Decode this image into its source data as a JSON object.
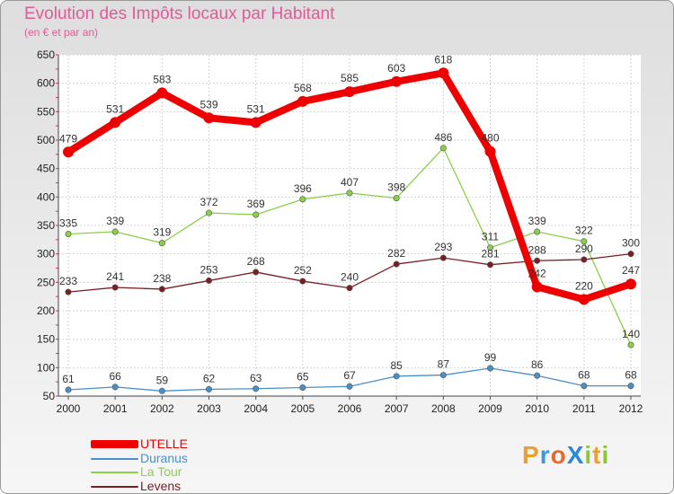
{
  "header": {
    "title": "Evolution des Impôts locaux par Habitant",
    "subtitle": "(en € et par an)"
  },
  "brand": {
    "text": "ProXiti",
    "letters": [
      "P",
      "r",
      "o",
      "X",
      "i",
      "t",
      "i"
    ],
    "colors": [
      "#e8a030",
      "#3a9ad8",
      "#e86a2a",
      "#2a8ad8",
      "#8cc63a",
      "#e8a030",
      "#8cc63a"
    ]
  },
  "chart_data": {
    "type": "line",
    "title": "Evolution des Impôts locaux par Habitant",
    "subtitle": "(en € et par an)",
    "x": [
      "2000",
      "2001",
      "2002",
      "2003",
      "2004",
      "2005",
      "2006",
      "2007",
      "2008",
      "2009",
      "2010",
      "2011",
      "2012"
    ],
    "ylim": [
      50,
      650
    ],
    "yticks": [
      50,
      100,
      150,
      200,
      250,
      300,
      350,
      400,
      450,
      500,
      550,
      600,
      650
    ],
    "grid": true,
    "legend_position": "bottom-left",
    "series": [
      {
        "name": "UTELLE",
        "color": "#ee0000",
        "values": [
          479,
          531,
          583,
          539,
          531,
          568,
          585,
          603,
          618,
          480,
          242,
          220,
          247
        ]
      },
      {
        "name": "Duranus",
        "color": "#4a90c8",
        "values": [
          61,
          66,
          59,
          62,
          63,
          65,
          67,
          85,
          87,
          99,
          86,
          68,
          68
        ]
      },
      {
        "name": "La Tour",
        "color": "#88d048",
        "values": [
          335,
          339,
          319,
          372,
          369,
          396,
          407,
          398,
          486,
          311,
          339,
          322,
          140
        ]
      },
      {
        "name": "Levens",
        "color": "#7a1e24",
        "values": [
          233,
          241,
          238,
          253,
          268,
          252,
          240,
          282,
          293,
          281,
          288,
          290,
          300
        ]
      }
    ]
  }
}
